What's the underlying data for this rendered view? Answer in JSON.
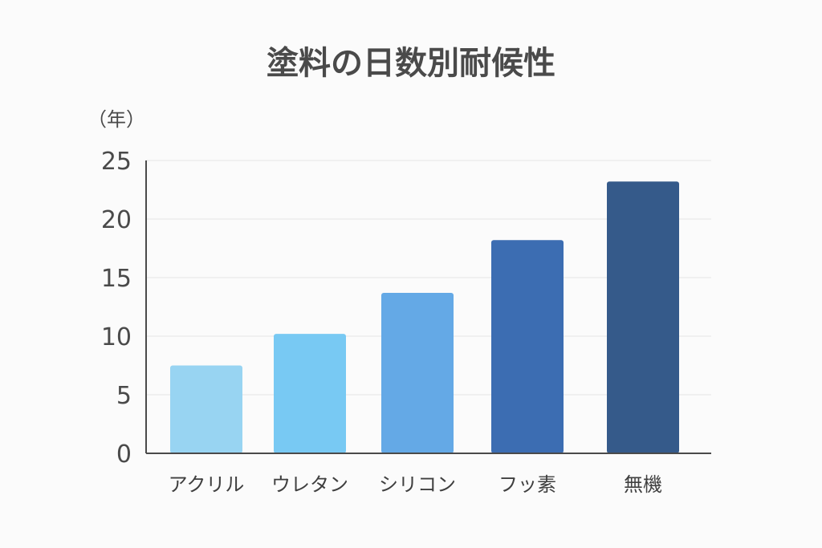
{
  "chart_data": {
    "type": "bar",
    "title": "塗料の日数別耐候性",
    "ylabel": "（年）",
    "xlabel": "",
    "categories": [
      "アクリル",
      "ウレタン",
      "シリコン",
      "フッ素",
      "無機"
    ],
    "values": [
      7.5,
      10.2,
      13.7,
      18.2,
      23.2
    ],
    "colors": [
      "#98d4f2",
      "#78c9f3",
      "#64a9e6",
      "#3c6db2",
      "#355a8a"
    ],
    "ylim": [
      0,
      25
    ],
    "yticks": [
      0,
      5,
      10,
      15,
      20,
      25
    ],
    "grid": true,
    "legend": false
  }
}
